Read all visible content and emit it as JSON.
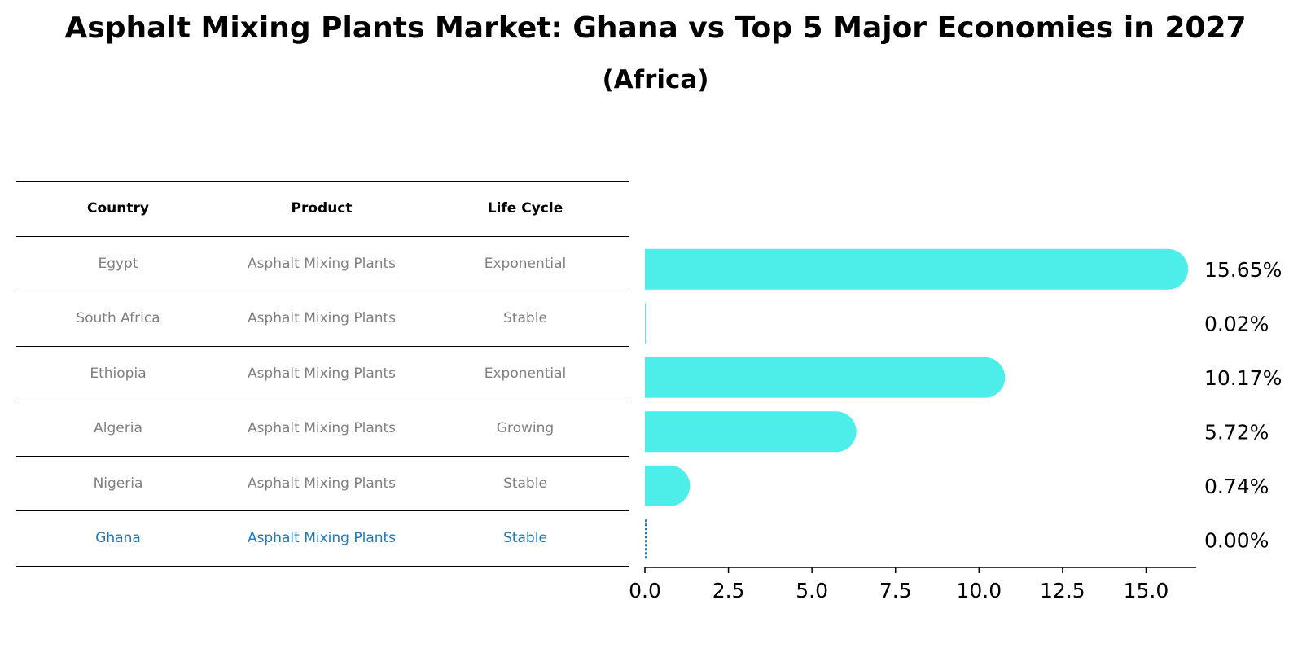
{
  "chart_data": {
    "type": "bar",
    "orientation": "horizontal",
    "title": "Asphalt Mixing Plants Market: Ghana vs Top 5 Major Economies in 2027",
    "subtitle": "(Africa)",
    "categories": [
      "Egypt",
      "South Africa",
      "Ethiopia",
      "Algeria",
      "Nigeria",
      "Ghana"
    ],
    "values": [
      15.65,
      0.02,
      10.17,
      5.72,
      0.74,
      0.0
    ],
    "value_labels": [
      "15.65%",
      "0.02%",
      "10.17%",
      "5.72%",
      "0.74%",
      "0.00%"
    ],
    "xlim": [
      0,
      16.5
    ],
    "xticks": [
      0.0,
      2.5,
      5.0,
      7.5,
      10.0,
      12.5,
      15.0
    ],
    "xtick_labels": [
      "0.0",
      "2.5",
      "5.0",
      "7.5",
      "10.0",
      "12.5",
      "15.0"
    ],
    "highlight": "Ghana",
    "bar_color": "#4deeea",
    "highlight_color": "#1f77b4"
  },
  "table": {
    "headers": [
      "Country",
      "Product",
      "Life Cycle"
    ],
    "rows": [
      [
        "Egypt",
        "Asphalt Mixing Plants",
        "Exponential"
      ],
      [
        "South Africa",
        "Asphalt Mixing Plants",
        "Stable"
      ],
      [
        "Ethiopia",
        "Asphalt Mixing Plants",
        "Exponential"
      ],
      [
        "Algeria",
        "Asphalt Mixing Plants",
        "Growing"
      ],
      [
        "Nigeria",
        "Asphalt Mixing Plants",
        "Stable"
      ],
      [
        "Ghana",
        "Asphalt Mixing Plants",
        "Stable"
      ]
    ]
  }
}
